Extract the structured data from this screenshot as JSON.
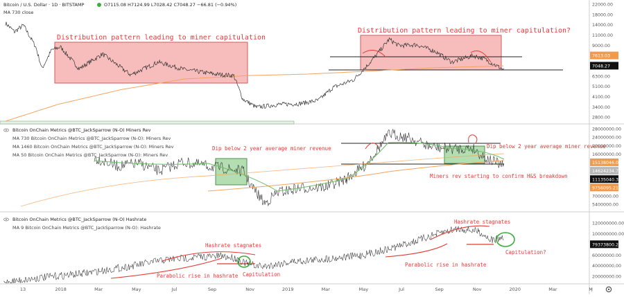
{
  "header": {
    "symbol": "Bitcoin / U.S. Dollar · 1D · BITSTAMP",
    "ohlc": "O7115.08  H7124.99  L7028.42  C7048.27  −66.81 (−0.94%)",
    "ma_label": "MA 730 close"
  },
  "colors": {
    "price": "#333333",
    "ma_orange": "#f5a45d",
    "ma_green": "#6cbf6c",
    "box_red": "#f4a6a6",
    "box_green": "#a7d7a3",
    "annot_red": "#e53935",
    "tag_orange": "#f29a4a",
    "tag_dark": "#111111"
  },
  "chart_data": [
    {
      "type": "line",
      "panel": "price",
      "title": "Bitcoin / U.S. Dollar · 1D · BITSTAMP",
      "y_scale": "log",
      "ylim": [
        2600,
        26000
      ],
      "y_ticks": [
        "22000.00",
        "18000.00",
        "14000.00",
        "11000.00",
        "9000.00",
        "7613.03",
        "7048.27",
        "6300.00",
        "5100.00",
        "4100.00",
        "3400.00",
        "2800.00"
      ],
      "tag_values": [
        "7613.03",
        "7048.27"
      ],
      "series": [
        {
          "name": "MA 730 close",
          "x": [
            "2017-12-15",
            "2018-03-01",
            "2018-06-01",
            "2018-09-01",
            "2018-12-01",
            "2019-03-01",
            "2019-06-01",
            "2019-09-01",
            "2019-12-10"
          ],
          "y": [
            2600,
            3600,
            4800,
            5900,
            6300,
            6500,
            6900,
            7350,
            7613
          ]
        },
        {
          "name": "",
          "x": [
            "2017-12-15",
            "2017-12-28",
            "2018-01-10",
            "2018-01-28",
            "2018-02-06",
            "2018-02-20",
            "2018-03-05",
            "2018-04-01",
            "2018-05-05",
            "2018-06-15",
            "2018-07-25",
            "2018-09-01",
            "2018-10-15",
            "2018-11-12",
            "2018-11-25",
            "2018-12-15",
            "2019-01-15",
            "2019-02-15",
            "2019-03-15",
            "2019-04-05",
            "2019-05-05",
            "2019-06-01",
            "2019-06-26",
            "2019-07-10",
            "2019-08-05",
            "2019-09-01",
            "2019-09-25",
            "2019-10-26",
            "2019-11-10",
            "2019-12-10"
          ],
          "y": [
            17500,
            14800,
            16800,
            11000,
            7200,
            10400,
            11000,
            7200,
            9600,
            6400,
            8200,
            7100,
            6500,
            6300,
            4000,
            3400,
            3600,
            3650,
            3900,
            5000,
            5800,
            8500,
            12800,
            11300,
            11500,
            10100,
            8200,
            9300,
            8800,
            7048
          ]
        }
      ],
      "annotations": [
        "Distribution pattern leading to miner capitulation",
        "Distribution pattern leading to miner capitulation?"
      ]
    },
    {
      "type": "line",
      "panel": "miners_rev",
      "title": "Bitcoin OnChain Metrics @BTC_JackSparrow (N-O) Miners Rev",
      "y_ticks": [
        "28000000.00",
        "24000000.00",
        "20000000.00",
        "16000000.00",
        "15138046.00",
        "14624234.70",
        "11135040.38",
        "9756095.21",
        "7000000.00",
        "5400000.00"
      ],
      "tag_values": [
        "15138046.00",
        "14624234.70",
        "11135040.38",
        "9756095.21"
      ],
      "series": [
        {
          "name": "MA 730 Bitcoin OnChain Metrics @BTC_JackSparrow (N-O): Miners Rev"
        },
        {
          "name": "MA 1460 Bitcoin OnChain Metrics @BTC_JackSparrow (N-O): Miners Rev"
        },
        {
          "name": "MA 50 Bitcoin OnChain Metrics @BTC_JackSparrow (N-O): Miners Rev"
        }
      ],
      "annotations": [
        "Dip below 2 year average miner revenue",
        "Dip below 2 year average miner revenue",
        "Miners rev starting to confirm H&S breakdown"
      ]
    },
    {
      "type": "line",
      "panel": "hashrate",
      "title": "Bitcoin OnChain Metrics @BTC_JackSparrow (N-O) Hashrate",
      "y_ticks": [
        "120000000.00",
        "100000000.00",
        "79373800.24",
        "60000000.00",
        "40000000.00",
        "20000000.00"
      ],
      "tag_values": [
        "79373800.24"
      ],
      "series": [
        {
          "name": "MA 9 Bitcoin OnChain Metrics @BTC_JackSparrow (N-O): Hashrate"
        }
      ],
      "annotations": [
        "Hashrate stagnates",
        "Parabolic rise in hashrate",
        "Capitulation",
        "Hashrate stagnates",
        "Parabolic rise in hashrate",
        "Capitulation?"
      ]
    }
  ],
  "time_axis": {
    "labels": [
      "13",
      "2018",
      "Mar",
      "May",
      "Jul",
      "Sep",
      "Nov",
      "2019",
      "Mar",
      "May",
      "Jul",
      "Sep",
      "Nov",
      "2020",
      "Mar",
      "M"
    ]
  },
  "miners_panel": {
    "title": "Bitcoin OnChain Metrics @BTC_JackSparrow (N-O) Miners Rev",
    "ma730": "MA 730 Bitcoin OnChain Metrics @BTC_JackSparrow (N-O): Miners Rev",
    "ma1460": "MA 1460 Bitcoin OnChain Metrics @BTC_JackSparrow (N-O): Miners Rev",
    "ma50": "MA 50 Bitcoin OnChain Metrics @BTC_JackSparrow (N-O): Miners Rev"
  },
  "hash_panel": {
    "title": "Bitcoin OnChain Metrics @BTC_JackSparrow (N-O) Hashrate",
    "ma9": "MA 9 Bitcoin OnChain Metrics @BTC_JackSparrow (N-O): Hashrate"
  },
  "annotations": {
    "dist1": "Distribution pattern leading to miner capitulation",
    "dist2": "Distribution pattern leading to miner capitulation?",
    "dip1": "Dip below 2 year average miner revenue",
    "dip2": "Dip below 2 year average miner revenue",
    "hs": "Miners rev starting to confirm H&S breakdown",
    "stag1": "Hashrate stagnates",
    "stag2": "Hashrate stagnates",
    "para1": "Parabolic rise in hashrate",
    "para2": "Parabolic rise in hashrate",
    "cap1": "Capitulation",
    "cap2": "Capitulation?"
  },
  "icons": [
    "eye-icon",
    "settings-gear-icon",
    "log-scale-icon"
  ]
}
